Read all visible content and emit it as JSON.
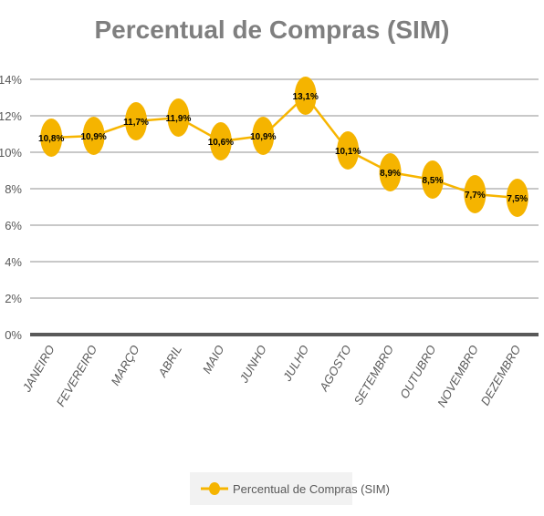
{
  "chart_data": {
    "type": "line",
    "title": "Percentual de Compras (SIM)",
    "xlabel": "",
    "ylabel": "",
    "categories": [
      "JANEIRO",
      "FEVEREIRO",
      "MARÇO",
      "ABRIL",
      "MAIO",
      "JUNHO",
      "JULHO",
      "AGOSTO",
      "SETEMBRO",
      "OUTUBRO",
      "NOVEMBRO",
      "DEZEMBRO"
    ],
    "series": [
      {
        "name": "Percentual de Compras (SIM)",
        "values": [
          10.8,
          10.9,
          11.7,
          11.9,
          10.6,
          10.9,
          13.1,
          10.1,
          8.9,
          8.5,
          7.7,
          7.5
        ],
        "labels": [
          "10,8%",
          "10,9%",
          "11,7%",
          "11,9%",
          "10,6%",
          "10,9%",
          "13,1%",
          "10,1%",
          "8,9%",
          "8,5%",
          "7,7%",
          "7,5%"
        ]
      }
    ],
    "yticks": [
      0,
      2,
      4,
      6,
      8,
      10,
      12,
      14
    ],
    "ytick_labels": [
      "0%",
      "2%",
      "4%",
      "6%",
      "8%",
      "10%",
      "12%",
      "14%"
    ],
    "ylim": [
      0,
      14
    ],
    "grid": true,
    "legend_position": "bottom",
    "colors": {
      "series": "#F7B500",
      "marker": "#F5B400",
      "title": "#7F7F7F",
      "grid": "#C8C8C8",
      "axis": "#595959",
      "text": "#595959",
      "legend_bg": "#F2F2F2"
    }
  }
}
